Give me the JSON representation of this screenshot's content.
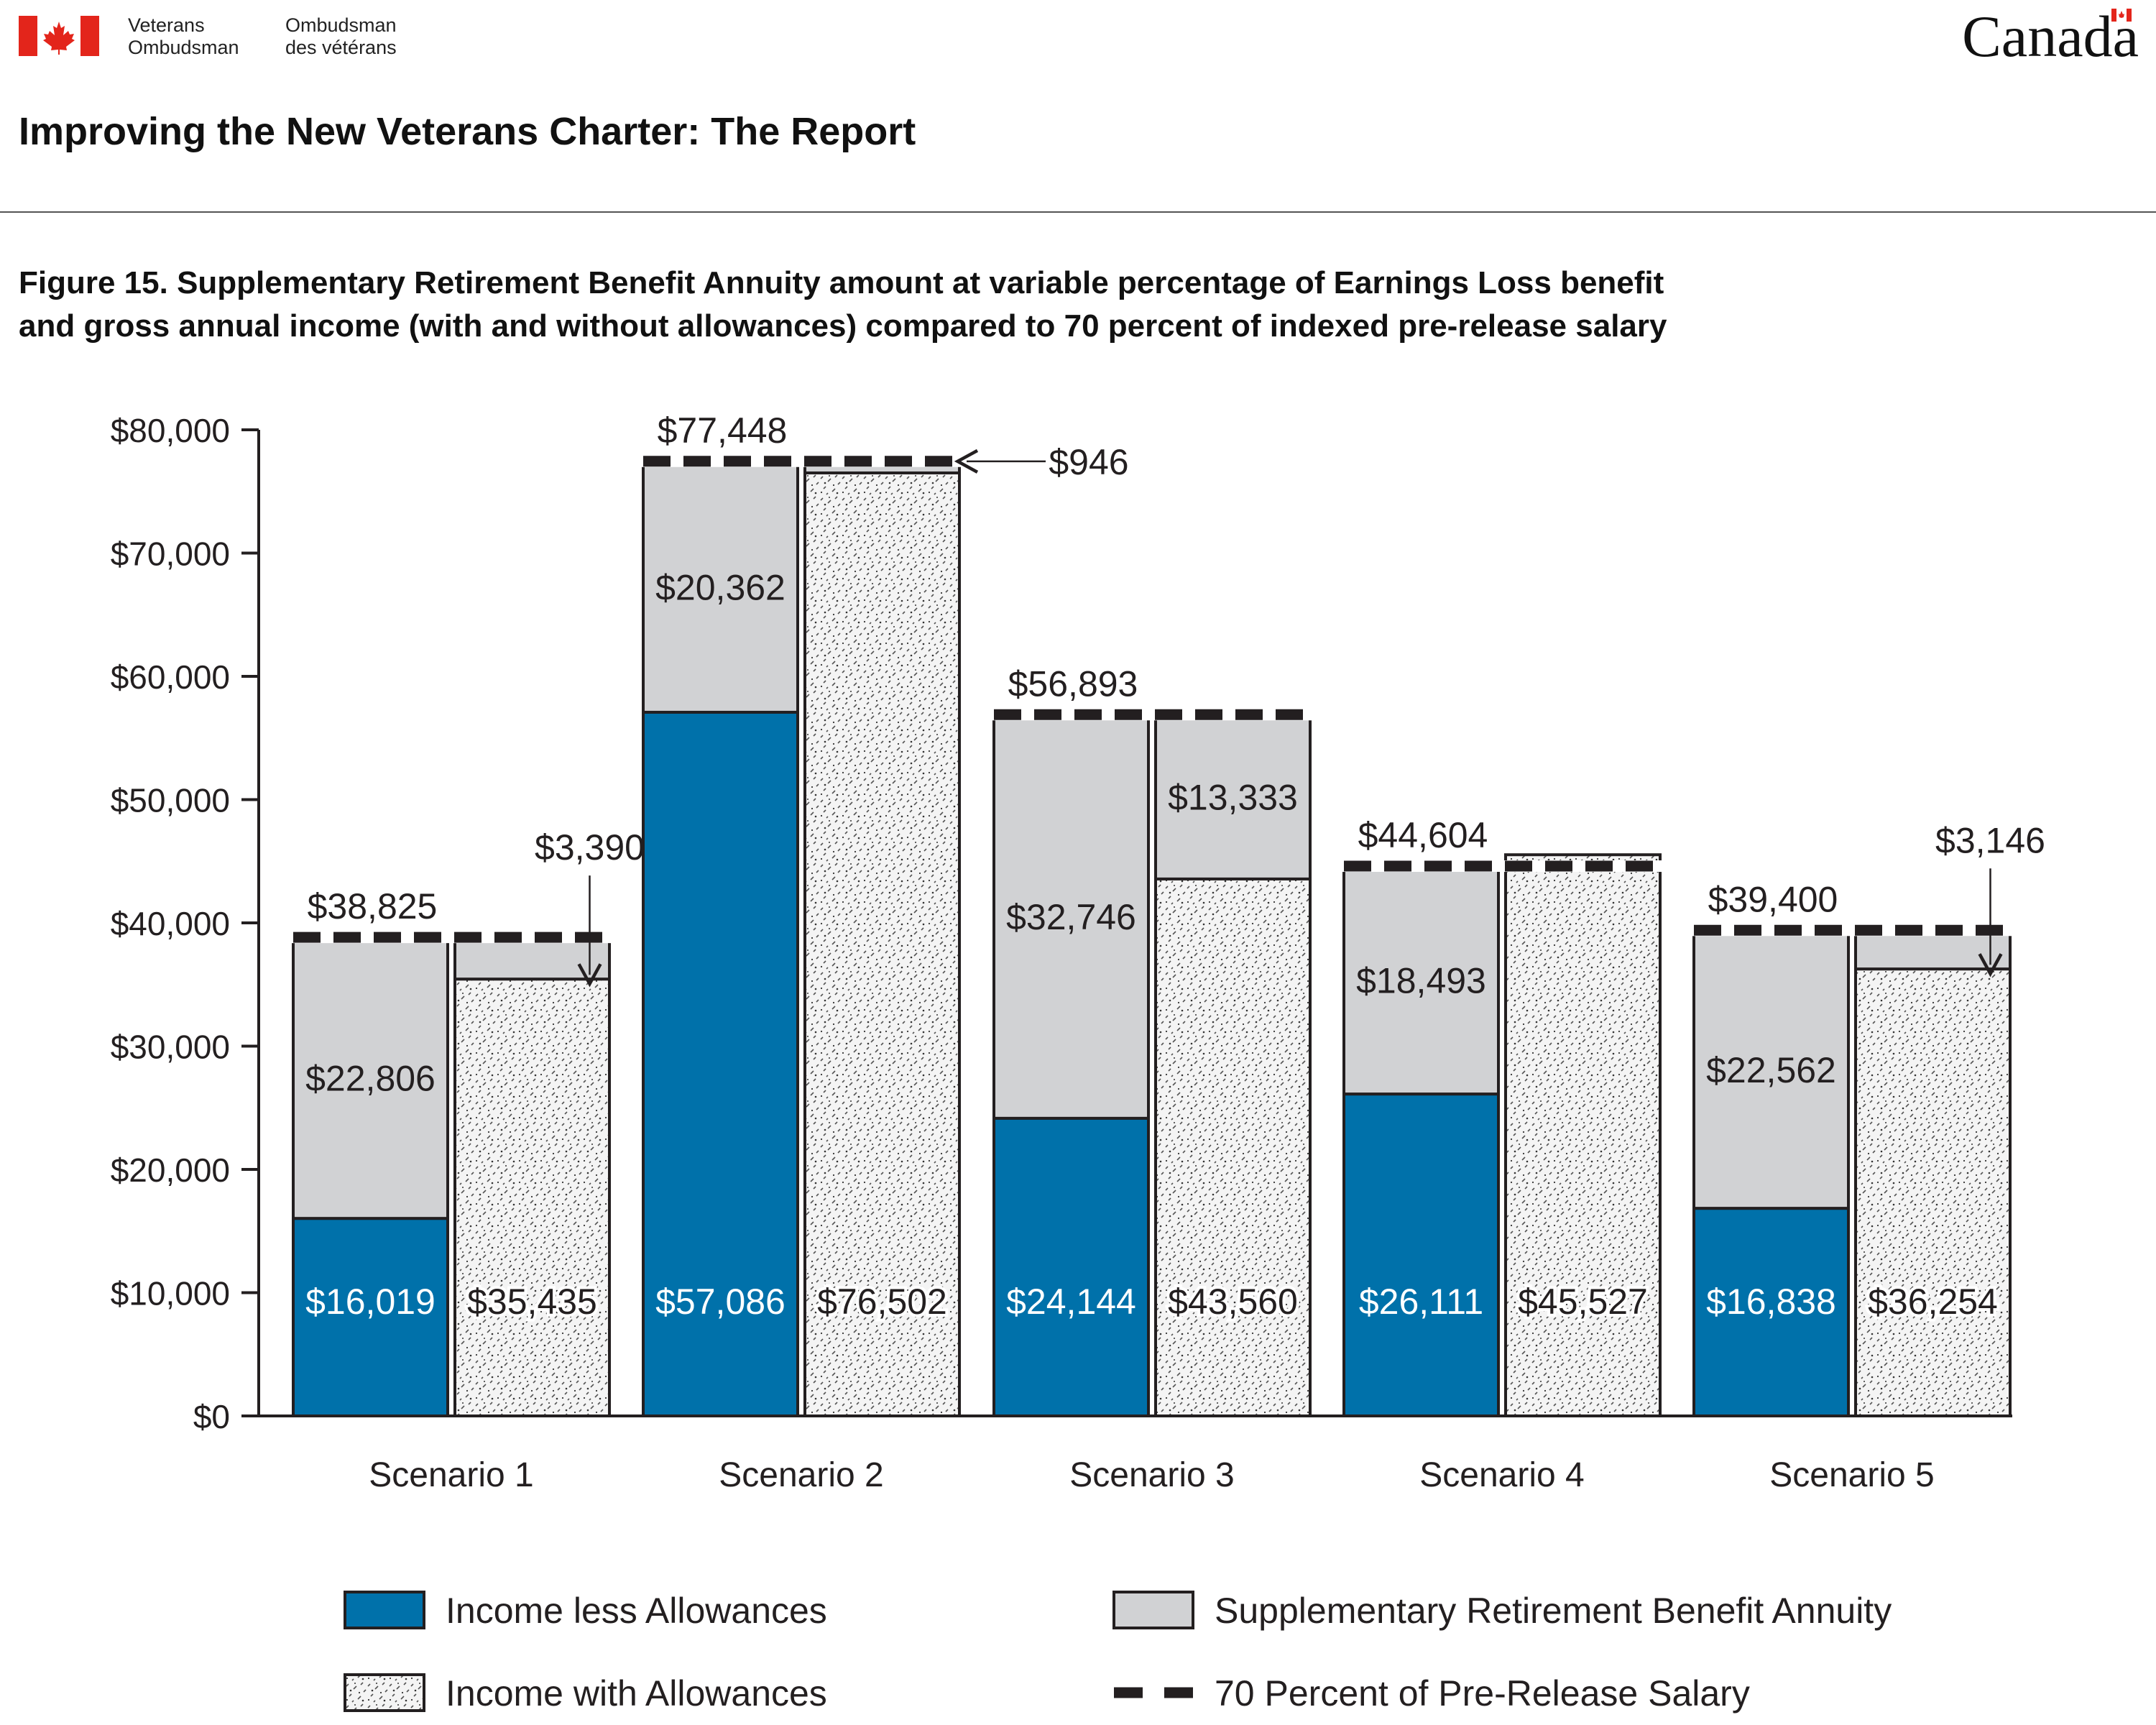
{
  "header": {
    "org_en_line1": "Veterans",
    "org_en_line2": "Ombudsman",
    "org_fr_line1": "Ombudsman",
    "org_fr_line2": "des vétérans",
    "wordmark": "Canada",
    "report_title": "Improving the New Veterans Charter: The Report"
  },
  "figure": {
    "title_line1": "Figure 15. Supplementary Retirement Benefit Annuity amount at variable percentage of Earnings Loss benefit",
    "title_line2": "and gross annual income (with and without allowances) compared to 70 percent of indexed pre-release salary"
  },
  "colors": {
    "income_less": "#0071aa",
    "sra": "#d1d2d4",
    "income_with": "#f4f4f4",
    "outline": "#231f20",
    "flag_red": "#e3251b"
  },
  "chart_data": {
    "type": "bar",
    "subtype": "grouped-stacked",
    "categories": [
      "Scenario 1",
      "Scenario 2",
      "Scenario 3",
      "Scenario 4",
      "Scenario 5"
    ],
    "ylim": [
      0,
      80000
    ],
    "yticks": [
      0,
      10000,
      20000,
      30000,
      40000,
      50000,
      60000,
      70000,
      80000
    ],
    "ytick_labels": [
      "$0",
      "$10,000",
      "$20,000",
      "$30,000",
      "$40,000",
      "$50,000",
      "$60,000",
      "$70,000",
      "$80,000"
    ],
    "series": [
      {
        "name": "Income less Allowances",
        "bar": "left",
        "values": [
          16019,
          57086,
          24144,
          26111,
          16838
        ],
        "labels": [
          "$16,019",
          "$57,086",
          "$24,144",
          "$26,111",
          "$16,838"
        ]
      },
      {
        "name": "Supplementary Retirement Benefit Annuity",
        "bar": "left",
        "values": [
          22806,
          20362,
          32746,
          18493,
          22562
        ],
        "labels": [
          "$22,806",
          "$20,362",
          "$32,746",
          "$18,493",
          "$22,562"
        ]
      },
      {
        "name": "Income with Allowances",
        "bar": "right",
        "values": [
          35435,
          76502,
          43560,
          45527,
          36254
        ],
        "labels": [
          "$35,435",
          "$76,502",
          "$43,560",
          "$45,527",
          "$36,254"
        ]
      },
      {
        "name": "Supplementary Retirement Benefit Annuity",
        "bar": "right",
        "values": [
          3390,
          946,
          13333,
          0,
          3146
        ],
        "labels": [
          "$3,390",
          "$946",
          "$13,333",
          "",
          "$3,146"
        ]
      },
      {
        "name": "70 Percent of Pre-Release Salary",
        "type": "dashed-line",
        "values": [
          38825,
          77448,
          56893,
          44604,
          39400
        ],
        "labels": [
          "$38,825",
          "$77,448",
          "$56,893",
          "$44,604",
          "$39,400"
        ]
      }
    ],
    "legend": {
      "placement": "bottom",
      "items": [
        {
          "label": "Income less Allowances",
          "swatch": "income_less"
        },
        {
          "label": "Supplementary Retirement Benefit Annuity",
          "swatch": "sra"
        },
        {
          "label": "Income with Allowances",
          "swatch": "income_with"
        },
        {
          "label": "70 Percent of Pre-Release Salary",
          "swatch": "dashed"
        }
      ]
    },
    "xlabel": "",
    "ylabel": "",
    "grid": false
  }
}
